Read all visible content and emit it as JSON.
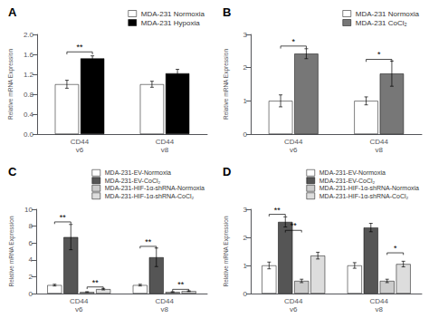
{
  "chart_data": [
    {
      "type": "bar",
      "title": "A",
      "categories": [
        "CD44\nv6",
        "CD44\nv8"
      ],
      "series": [
        {
          "name": "MDA-231 Normoxia",
          "color": "white",
          "values": [
            1.0,
            1.0
          ],
          "errors": [
            0.08,
            0.06
          ]
        },
        {
          "name": "MDA-231 Hypoxia",
          "color": "black",
          "values": [
            1.52,
            1.22
          ],
          "errors": [
            0.05,
            0.08
          ]
        }
      ],
      "ylim": [
        0,
        2.0
      ],
      "yticks": [
        {
          "value": 0,
          "label": "0.0"
        },
        0.4,
        0.8,
        1.2,
        1.6,
        {
          "value": 2,
          "label": "2.0"
        }
      ],
      "ylabel": "Relative mRNA Expression",
      "annotations": [
        {
          "text": "**",
          "category": "CD44\nv6",
          "series": [
            "MDA-231 Normoxia",
            "MDA-231 Hypoxia"
          ],
          "y": 1.65
        }
      ],
      "legend": "upper right",
      "grid": false
    },
    {
      "type": "bar",
      "title": "B",
      "categories": [
        "CD44\nv6",
        "CD44\nv8"
      ],
      "series": [
        {
          "name": "MDA-231 Normoxia",
          "color": "white",
          "values": [
            1.0,
            1.0
          ],
          "errors": [
            0.18,
            0.12
          ]
        },
        {
          "name": "MDA-231 CoCl₂",
          "color": "#777777",
          "values": [
            2.42,
            1.82
          ],
          "errors": [
            0.15,
            0.38
          ]
        }
      ],
      "ylim": [
        0,
        3.0
      ],
      "yticks": [
        0,
        1,
        2,
        3
      ],
      "ylabel": "Relative mRNA Expression",
      "annotations": [
        {
          "text": "*",
          "category": "CD44\nv6",
          "series": [
            "MDA-231 Normoxia",
            "MDA-231 CoCl₂"
          ],
          "y": 2.65
        },
        {
          "text": "*",
          "category": "CD44\nv8",
          "series": [
            "MDA-231 Normoxia",
            "MDA-231 CoCl₂"
          ],
          "y": 2.25
        }
      ],
      "legend": "upper right",
      "grid": false
    },
    {
      "type": "bar",
      "title": "C",
      "categories": [
        "CD44\nv6",
        "CD44\nv8"
      ],
      "series": [
        {
          "name": "MDA-231-EV-Normoxia",
          "color": "white",
          "values": [
            1.0,
            1.0
          ],
          "errors": [
            0.1,
            0.1
          ]
        },
        {
          "name": "MDA-231-EV-CoCl₂",
          "color": "#555555",
          "values": [
            6.7,
            4.3
          ],
          "errors": [
            1.5,
            1.1
          ]
        },
        {
          "name": "MDA-231-HIF-1α-shRNA-Normoxia",
          "color": "#cccccc",
          "values": [
            0.18,
            0.18
          ],
          "errors": [
            0.04,
            0.04
          ]
        },
        {
          "name": "MDA-231-HIF-1α-shRNA-CoCl₂",
          "color": "#dddddd",
          "values": [
            0.52,
            0.28
          ],
          "errors": [
            0.09,
            0.04
          ]
        }
      ],
      "ylim": [
        0,
        10.0
      ],
      "yticks": [
        0,
        2,
        4,
        6,
        8,
        10
      ],
      "ylabel": "Relative mRNA Expression",
      "annotations": [
        {
          "text": "**",
          "category": "CD44\nv6",
          "series": [
            "MDA-231-EV-Normoxia",
            "MDA-231-EV-CoCl₂"
          ],
          "y": 8.5
        },
        {
          "text": "**",
          "category": "CD44\nv6",
          "series": [
            "MDA-231-HIF-1α-shRNA-Normoxia",
            "MDA-231-HIF-1α-shRNA-CoCl₂"
          ],
          "y": 0.78
        },
        {
          "text": "**",
          "category": "CD44\nv8",
          "series": [
            "MDA-231-EV-Normoxia",
            "MDA-231-EV-CoCl₂"
          ],
          "y": 5.6
        },
        {
          "text": "**",
          "category": "CD44\nv8",
          "series": [
            "MDA-231-HIF-1α-shRNA-Normoxia",
            "MDA-231-HIF-1α-shRNA-CoCl₂"
          ],
          "y": 0.5
        }
      ],
      "legend": "upper right",
      "grid": false
    },
    {
      "type": "bar",
      "title": "D",
      "categories": [
        "CD44\nv6",
        "CD44\nv8"
      ],
      "series": [
        {
          "name": "MDA-231-EV-Normoxia",
          "color": "white",
          "values": [
            1.0,
            1.0
          ],
          "errors": [
            0.12,
            0.1
          ]
        },
        {
          "name": "MDA-231-EV-CoCl₂",
          "color": "#555555",
          "values": [
            2.55,
            2.35
          ],
          "errors": [
            0.18,
            0.15
          ]
        },
        {
          "name": "MDA-231-HIF-1α-shRNA-Normoxia",
          "color": "#cccccc",
          "values": [
            0.45,
            0.45
          ],
          "errors": [
            0.06,
            0.06
          ]
        },
        {
          "name": "MDA-231-HIF-1α-shRNA-CoCl₂",
          "color": "#dddddd",
          "values": [
            1.35,
            1.05
          ],
          "errors": [
            0.12,
            0.1
          ]
        }
      ],
      "ylim": [
        0,
        3.0
      ],
      "yticks": [
        0,
        1,
        2,
        3
      ],
      "ylabel": "Relative mRNA Expression",
      "annotations": [
        {
          "text": "**",
          "category": "CD44\nv6",
          "series": [
            "MDA-231-EV-Normoxia",
            "MDA-231-EV-CoCl₂"
          ],
          "y": 2.82
        },
        {
          "text": "**",
          "category": "CD44\nv6",
          "series": [
            "MDA-231-EV-CoCl₂",
            "MDA-231-HIF-1α-shRNA-Normoxia"
          ],
          "y": 2.25
        },
        {
          "text": "*",
          "category": "CD44\nv8",
          "series": [
            "MDA-231-HIF-1α-shRNA-Normoxia",
            "MDA-231-HIF-1α-shRNA-CoCl₂"
          ],
          "y": 1.45
        }
      ],
      "legend": "upper right",
      "grid": false
    }
  ]
}
